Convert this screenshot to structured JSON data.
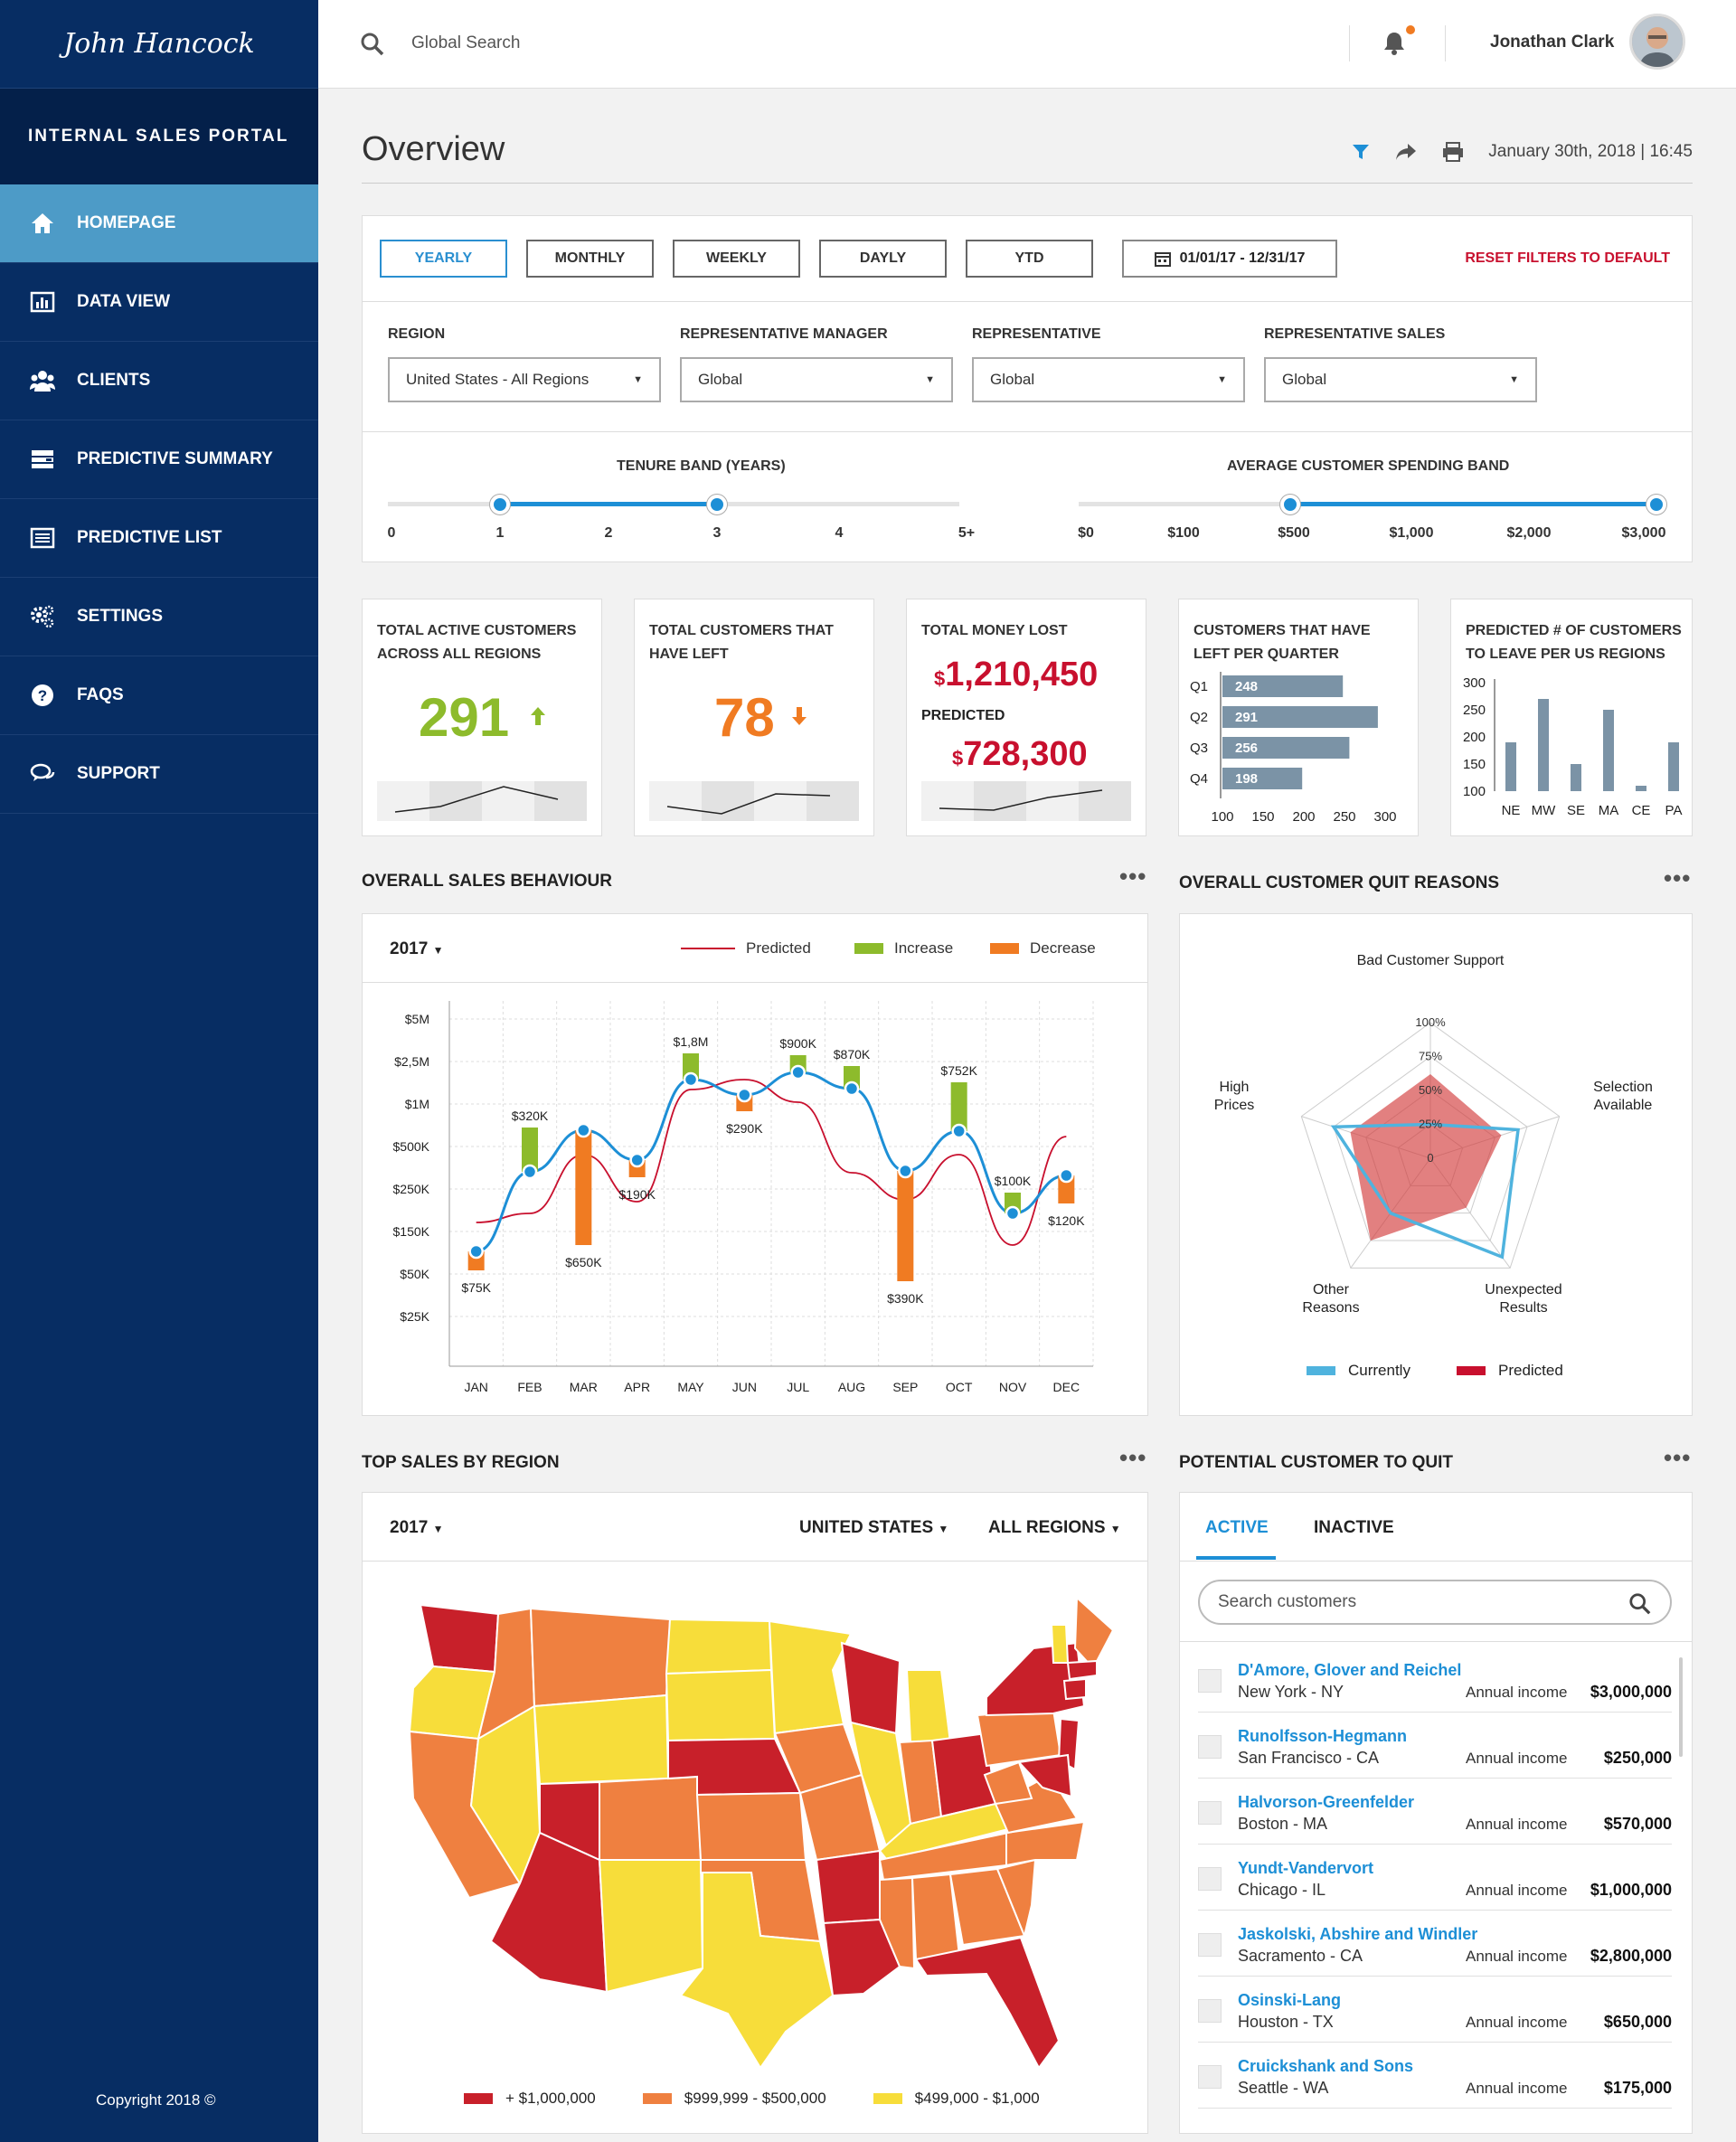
{
  "brand": {
    "logo": "John Hancock",
    "portal_title": "INTERNAL SALES PORTAL",
    "copyright": "Copyright 2018 ©"
  },
  "sidebar": {
    "items": [
      {
        "label": "HOMEPAGE",
        "icon": "home-icon",
        "active": true
      },
      {
        "label": "DATA VIEW",
        "icon": "bar-chart-icon",
        "active": false
      },
      {
        "label": "CLIENTS",
        "icon": "users-icon",
        "active": false
      },
      {
        "label": "PREDICTIVE SUMMARY",
        "icon": "summary-icon",
        "active": false
      },
      {
        "label": "PREDICTIVE LIST",
        "icon": "list-icon",
        "active": false
      },
      {
        "label": "SETTINGS",
        "icon": "gear-icon",
        "active": false
      },
      {
        "label": "FAQS",
        "icon": "question-icon",
        "active": false
      },
      {
        "label": "SUPPORT",
        "icon": "chat-icon",
        "active": false
      }
    ]
  },
  "topbar": {
    "search_placeholder": "Global Search",
    "user_name": "Jonathan Clark"
  },
  "overview": {
    "title": "Overview",
    "datetime": "January 30th, 2018 | 16:45"
  },
  "filters": {
    "periods": [
      "YEARLY",
      "MONTHLY",
      "WEEKLY",
      "DAYLY",
      "YTD"
    ],
    "selected_period": "YEARLY",
    "date_range": "01/01/17  -  12/31/17",
    "reset_label": "RESET FILTERS TO DEFAULT",
    "dropdowns": [
      {
        "label": "REGION",
        "value": "United States - All Regions"
      },
      {
        "label": "REPRESENTATIVE MANAGER",
        "value": "Global"
      },
      {
        "label": "REPRESENTATIVE",
        "value": "Global"
      },
      {
        "label": "REPRESENTATIVE SALES",
        "value": "Global"
      }
    ],
    "tenure": {
      "title": "TENURE BAND (YEARS)",
      "ticks": [
        "0",
        "1",
        "2",
        "3",
        "4",
        "5+"
      ],
      "range": [
        "1",
        "3"
      ]
    },
    "spending": {
      "title": "AVERAGE CUSTOMER SPENDING BAND",
      "ticks": [
        "$0",
        "$100",
        "$500",
        "$1,000",
        "$2,000",
        "$3,000"
      ],
      "range": [
        "$500",
        "$3,000"
      ]
    }
  },
  "kpis": {
    "active": {
      "title_l1": "TOTAL ACTIVE CUSTOMERS",
      "title_l2": "ACROSS ALL REGIONS",
      "value": "291",
      "trend": "up",
      "color": "#8dbb2c"
    },
    "left": {
      "title_l1": "TOTAL CUSTOMERS THAT",
      "title_l2": "HAVE LEFT",
      "value": "78",
      "trend": "down",
      "color": "#f07b22"
    },
    "money": {
      "title": "TOTAL MONEY LOST",
      "currency": "$",
      "value": "1,210,450",
      "predicted_label": "PREDICTED",
      "predicted_value": "728,300",
      "color": "#c8102e"
    },
    "quarter": {
      "title_l1": "CUSTOMERS THAT HAVE",
      "title_l2": "LEFT PER QUARTER"
    },
    "regions": {
      "title_l1": "PREDICTED # OF CUSTOMERS",
      "title_l2": "TO LEAVE PER US REGIONS"
    }
  },
  "sections": {
    "sales": {
      "title": "OVERALL SALES BEHAVIOUR",
      "year": "2017",
      "legend": [
        "Predicted",
        "Increase",
        "Decrease"
      ]
    },
    "quit": {
      "title": "OVERALL CUSTOMER QUIT REASONS",
      "legend": [
        "Currently",
        "Predicted"
      ]
    },
    "region": {
      "title": "TOP SALES BY REGION",
      "year": "2017",
      "country": "UNITED STATES",
      "regions": "ALL REGIONS",
      "legend": [
        "+ $1,000,000",
        "$999,999 - $500,000",
        "$499,000 - $1,000"
      ]
    },
    "potential": {
      "title": "POTENTIAL CUSTOMER TO QUIT",
      "tabs": [
        "ACTIVE",
        "INACTIVE"
      ],
      "search_placeholder": "Search customers",
      "income_label": "Annual income"
    }
  },
  "customers": [
    {
      "name": "D'Amore, Glover and Reichel",
      "loc": "New York - NY",
      "income": "$3,000,000"
    },
    {
      "name": "Runolfsson-Hegmann",
      "loc": "San Francisco - CA",
      "income": "$250,000"
    },
    {
      "name": "Halvorson-Greenfelder",
      "loc": "Boston - MA",
      "income": "$570,000"
    },
    {
      "name": "Yundt-Vandervort",
      "loc": "Chicago - IL",
      "income": "$1,000,000"
    },
    {
      "name": "Jaskolski, Abshire and Windler",
      "loc": "Sacramento - CA",
      "income": "$2,800,000"
    },
    {
      "name": "Osinski-Lang",
      "loc": "Houston - TX",
      "income": "$650,000"
    },
    {
      "name": "Cruickshank and Sons",
      "loc": "Seattle - WA",
      "income": "$175,000"
    }
  ],
  "colors": {
    "navy": "#072d63",
    "accent": "#1d8fd6",
    "green": "#8dbb2c",
    "orange": "#f07b22",
    "red": "#c8102e",
    "yellow": "#f7dd3a",
    "map_red": "#c8202a",
    "map_orange": "#ef8040",
    "steel": "#7b93a6"
  },
  "chart_data": [
    {
      "type": "bar",
      "orientation": "horizontal",
      "categories": [
        "Q1",
        "Q2",
        "Q3",
        "Q4"
      ],
      "values": [
        248,
        291,
        256,
        198
      ],
      "xlim": [
        100,
        300
      ],
      "xticks": [
        "100",
        "150",
        "200",
        "250",
        "300"
      ]
    },
    {
      "type": "bar",
      "categories": [
        "NE",
        "MW",
        "SE",
        "MA",
        "CE",
        "PA"
      ],
      "values": [
        190,
        270,
        150,
        250,
        110,
        190
      ],
      "ylim": [
        100,
        300
      ],
      "yticks": [
        "300",
        "250",
        "200",
        "150",
        "100"
      ]
    },
    {
      "type": "line",
      "categories": [
        "JAN",
        "FEB",
        "MAR",
        "APR",
        "MAY",
        "JUN",
        "JUL",
        "AUG",
        "SEP",
        "OCT",
        "NOV",
        "DEC"
      ],
      "yticks": [
        "$5M",
        "$2,5M",
        "$1M",
        "$500K",
        "$250K",
        "$150K",
        "$50K",
        "$25K"
      ],
      "series": [
        {
          "name": "Predicted"
        }
      ],
      "changes": [
        {
          "month": "JAN",
          "label": "$75K",
          "dir": "decrease"
        },
        {
          "month": "FEB",
          "label": "$320K",
          "dir": "increase"
        },
        {
          "month": "MAR",
          "label": "$650K",
          "dir": "decrease"
        },
        {
          "month": "APR",
          "label": "$190K",
          "dir": "decrease"
        },
        {
          "month": "MAY",
          "label": "$1,8M",
          "dir": "increase"
        },
        {
          "month": "JUN",
          "label": "$290K",
          "dir": "decrease"
        },
        {
          "month": "JUL",
          "label": "$900K",
          "dir": "increase"
        },
        {
          "month": "AUG",
          "label": "$870K",
          "dir": "increase"
        },
        {
          "month": "SEP",
          "label": "$390K",
          "dir": "decrease"
        },
        {
          "month": "OCT",
          "label": "$752K",
          "dir": "increase"
        },
        {
          "month": "NOV",
          "label": "$100K",
          "dir": "increase"
        },
        {
          "month": "DEC",
          "label": "$120K",
          "dir": "decrease"
        }
      ]
    },
    {
      "type": "radar",
      "axes": [
        "Bad Customer Support",
        "Selection Available",
        "Unexpected Results",
        "Other Reasons",
        "High Prices"
      ],
      "axis_labels": [
        [
          "Bad Customer Support"
        ],
        [
          "Selection",
          "Available"
        ],
        [
          "Unexpected",
          "Results"
        ],
        [
          "Other",
          "Reasons"
        ],
        [
          "High",
          "Prices"
        ]
      ],
      "rings": [
        "100%",
        "75%",
        "50%",
        "25%",
        "0"
      ],
      "series": [
        {
          "name": "Currently",
          "values": [
            25,
            68,
            90,
            50,
            75
          ]
        },
        {
          "name": "Predicted",
          "values": [
            62,
            55,
            45,
            75,
            62
          ]
        }
      ]
    }
  ]
}
